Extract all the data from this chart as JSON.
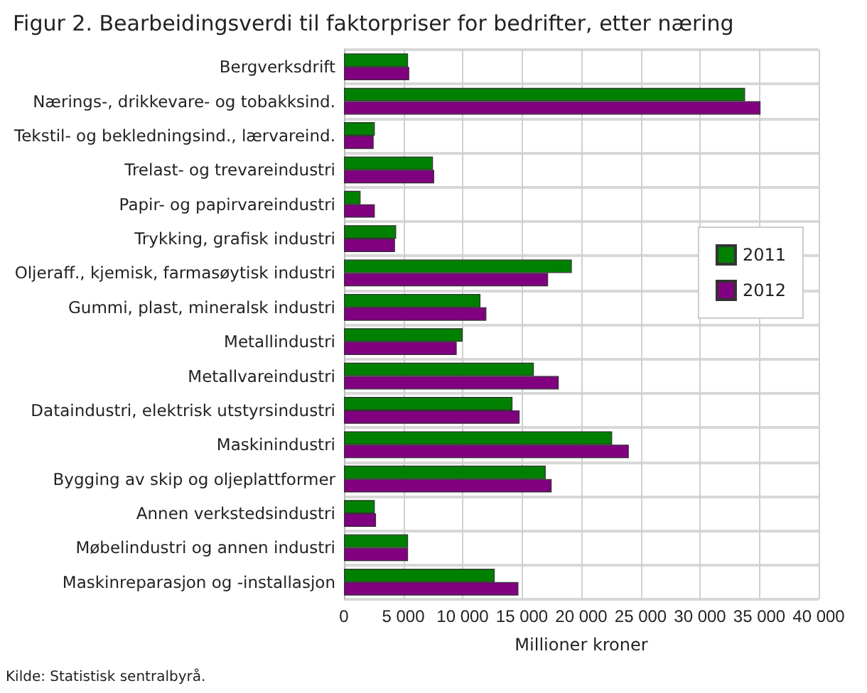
{
  "chart_data": {
    "type": "bar",
    "orientation": "horizontal",
    "title": "Figur 2. Bearbeidingsverdi til faktorpriser for bedrifter, etter næring",
    "xlabel": "Millioner kroner",
    "categories": [
      "Bergverksdrift",
      "Nærings-, drikkevare- og tobakksind.",
      "Tekstil- og bekledningsind., lærvareind.",
      "Trelast- og trevareindustri",
      "Papir- og papirvareindustri",
      "Trykking, grafisk industri",
      "Oljeraff., kjemisk, farmasøytisk industri",
      "Gummi, plast, mineralsk industri",
      "Metallindustri",
      "Metallvareindustri",
      "Dataindustri, elektrisk utstyrsindustri",
      "Maskinindustri",
      "Bygging av skip og oljeplattformer",
      "Annen verkstedsindustri",
      "Møbelindustri og annen industri",
      "Maskinreparasjon og -installasjon"
    ],
    "series": [
      {
        "name": "2011",
        "color": "#008000",
        "values": [
          5400,
          33800,
          2600,
          7500,
          1400,
          4400,
          19200,
          11500,
          10000,
          16000,
          14200,
          22600,
          17000,
          2600,
          5400,
          12700
        ]
      },
      {
        "name": "2012",
        "color": "#800080",
        "values": [
          5500,
          35100,
          2500,
          7600,
          2600,
          4300,
          17200,
          12000,
          9500,
          18100,
          14800,
          24000,
          17500,
          2700,
          5400,
          14700
        ]
      }
    ],
    "xlim": [
      0,
      40000
    ],
    "xticks": [
      {
        "value": 0,
        "label": "0"
      },
      {
        "value": 5000,
        "label": "5 000"
      },
      {
        "value": 10000,
        "label": "10 000"
      },
      {
        "value": 15000,
        "label": "15 000"
      },
      {
        "value": 20000,
        "label": "20 000"
      },
      {
        "value": 25000,
        "label": "25 000"
      },
      {
        "value": 30000,
        "label": "30 000"
      },
      {
        "value": 35000,
        "label": "35 000"
      },
      {
        "value": 40000,
        "label": "40 000"
      }
    ],
    "grid": true,
    "legend": "right",
    "annotations": [
      "Kilde: Statistisk sentralbyrå."
    ]
  }
}
